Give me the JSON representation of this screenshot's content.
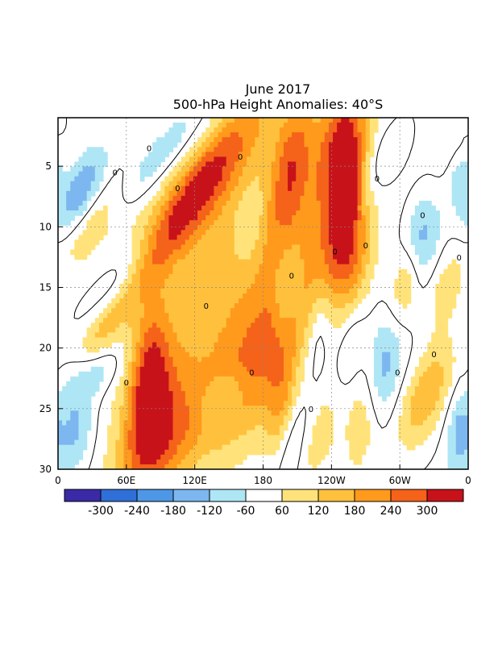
{
  "chart_data": {
    "type": "heatmap",
    "title": "June 2017",
    "subtitle": "500-hPa Height Anomalies: 40°S",
    "xlabel": "",
    "ylabel": "",
    "x_range": [
      0,
      360
    ],
    "y_range": [
      1,
      30
    ],
    "y_inverted": true,
    "x_tick_labels": [
      "0",
      "60E",
      "120E",
      "180",
      "120W",
      "60W",
      "0"
    ],
    "y_tick_labels": [
      "5",
      "10",
      "15",
      "20",
      "25",
      "30"
    ],
    "y_tick_values": [
      5,
      10,
      15,
      20,
      25,
      30
    ],
    "grid": true,
    "contour_label": "0",
    "colorbar": {
      "placement": "bottom",
      "labels": [
        "-300",
        "-240",
        "-180",
        "-120",
        "-60",
        "60",
        "120",
        "180",
        "240",
        "300"
      ],
      "colors": [
        "#3a2aa6",
        "#2f6fd8",
        "#4d97e6",
        "#7cb7f0",
        "#aee6f5",
        "#ffffff",
        "#ffe37a",
        "#ffc13d",
        "#ff9a1c",
        "#f5621a",
        "#c8121a"
      ]
    },
    "features": [
      {
        "kind": "positive",
        "amp": 190,
        "x0": 175,
        "y0": 13.0,
        "xw": 85,
        "yw": 9.0,
        "slope": 0.1
      },
      {
        "kind": "positive",
        "amp": 170,
        "x0": 128,
        "y0": 6.0,
        "xw": 40,
        "yw": 2.2,
        "slope": 0.12
      },
      {
        "kind": "positive",
        "amp": 165,
        "x0": 100,
        "y0": 10.0,
        "xw": 45,
        "yw": 2.5,
        "slope": 0.1
      },
      {
        "kind": "positive",
        "amp": 240,
        "x0": 255,
        "y0": 7.5,
        "xw": 10,
        "yw": 4.0,
        "slope": 0.15
      },
      {
        "kind": "positive",
        "amp": 175,
        "x0": 245,
        "y0": 3.0,
        "xw": 14,
        "yw": 3.5,
        "slope": 0.15
      },
      {
        "kind": "positive",
        "amp": 165,
        "x0": 205,
        "y0": 5.0,
        "xw": 12,
        "yw": 3.5,
        "slope": 0.15
      },
      {
        "kind": "positive",
        "amp": 150,
        "x0": 195,
        "y0": 25.5,
        "xw": 10,
        "yw": 3.5,
        "slope": 0.15
      },
      {
        "kind": "positive",
        "amp": 130,
        "x0": 268,
        "y0": 25.5,
        "xw": 12,
        "yw": 3.5,
        "slope": 0.12
      },
      {
        "kind": "positive",
        "amp": 230,
        "x0": 80,
        "y0": 22.0,
        "xw": 12,
        "yw": 4.0,
        "slope": 0.1
      },
      {
        "kind": "positive",
        "amp": 175,
        "x0": 82,
        "y0": 26.0,
        "xw": 20,
        "yw": 3.0,
        "slope": 0.1
      },
      {
        "kind": "positive",
        "amp": 160,
        "x0": 178,
        "y0": 21.0,
        "xw": 28,
        "yw": 3.5,
        "slope": 0.12
      },
      {
        "kind": "positive",
        "amp": 140,
        "x0": 100,
        "y0": 28.0,
        "xw": 30,
        "yw": 2.5,
        "slope": 0.1
      },
      {
        "kind": "positive",
        "amp": 185,
        "x0": 323,
        "y0": 24.0,
        "xw": 18,
        "yw": 2.5,
        "slope": 0.1
      },
      {
        "kind": "positive",
        "amp": 140,
        "x0": 305,
        "y0": 14.5,
        "xw": 10,
        "yw": 2.5,
        "slope": 0.12
      },
      {
        "kind": "positive",
        "amp": 135,
        "x0": 262,
        "y0": 14.0,
        "xw": 10,
        "yw": 3.0,
        "slope": 0.12
      },
      {
        "kind": "positive",
        "amp": 120,
        "x0": 240,
        "y0": 13.0,
        "xw": 12,
        "yw": 3.5,
        "slope": 0.12
      },
      {
        "kind": "positive",
        "amp": 120,
        "x0": 226,
        "y0": 27.5,
        "xw": 14,
        "yw": 2.5,
        "slope": 0.1
      },
      {
        "kind": "positive",
        "amp": 110,
        "x0": 35,
        "y0": 19.5,
        "xw": 15,
        "yw": 1.8,
        "slope": 0.1
      },
      {
        "kind": "positive",
        "amp": 110,
        "x0": 30,
        "y0": 10.0,
        "xw": 20,
        "yw": 1.8,
        "slope": 0.1
      },
      {
        "kind": "positive",
        "amp": 110,
        "x0": 350,
        "y0": 3.0,
        "xw": 10,
        "yw": 2.0,
        "slope": 0.05
      },
      {
        "kind": "positive",
        "amp": 100,
        "x0": 340,
        "y0": 15.0,
        "xw": 12,
        "yw": 2.5,
        "slope": 0.1
      },
      {
        "kind": "negative",
        "amp": 170,
        "x0": 285,
        "y0": 21.5,
        "xw": 12,
        "yw": 3.0,
        "slope": 0.1
      },
      {
        "kind": "negative",
        "amp": 170,
        "x0": 318,
        "y0": 11.0,
        "xw": 12,
        "yw": 2.5,
        "slope": 0.05
      },
      {
        "kind": "negative",
        "amp": 150,
        "x0": 30,
        "y0": 22.0,
        "xw": 18,
        "yw": 1.5,
        "slope": 0.05
      },
      {
        "kind": "negative",
        "amp": 170,
        "x0": 20,
        "y0": 7.0,
        "xw": 15,
        "yw": 1.8,
        "slope": 0.1
      },
      {
        "kind": "negative",
        "amp": 150,
        "x0": 15,
        "y0": 27.0,
        "xw": 12,
        "yw": 2.5,
        "slope": 0.05
      },
      {
        "kind": "negative",
        "amp": 140,
        "x0": 55,
        "y0": 14.0,
        "xw": 25,
        "yw": 1.5,
        "slope": 0.1
      },
      {
        "kind": "negative",
        "amp": 120,
        "x0": 290,
        "y0": 4.0,
        "xw": 15,
        "yw": 2.0,
        "slope": 0.1
      },
      {
        "kind": "negative",
        "amp": 130,
        "x0": 352,
        "y0": 5.0,
        "xw": 8,
        "yw": 2.5,
        "slope": 0.05
      },
      {
        "kind": "negative",
        "amp": 120,
        "x0": 352,
        "y0": 27.0,
        "xw": 8,
        "yw": 2.5,
        "slope": 0.05
      },
      {
        "kind": "negative",
        "amp": 120,
        "x0": 205,
        "y0": 28.0,
        "xw": 15,
        "yw": 2.5,
        "slope": 0.1
      },
      {
        "kind": "negative",
        "amp": 110,
        "x0": 145,
        "y0": 24.0,
        "xw": 16,
        "yw": 1.3,
        "slope": 0.05
      },
      {
        "kind": "negative",
        "amp": 110,
        "x0": 230,
        "y0": 18.0,
        "xw": 8,
        "yw": 3.0,
        "slope": 0.15
      },
      {
        "kind": "negative",
        "amp": 110,
        "x0": 200,
        "y0": 15.5,
        "xw": 8,
        "yw": 2.5,
        "slope": 0.1
      },
      {
        "kind": "negative",
        "amp": 110,
        "x0": 90,
        "y0": 4.0,
        "xw": 25,
        "yw": 1.3,
        "slope": 0.1
      },
      {
        "kind": "negative",
        "amp": 100,
        "x0": 168,
        "y0": 10.0,
        "xw": 10,
        "yw": 2.5,
        "slope": 0.1
      },
      {
        "kind": "negative",
        "amp": 100,
        "x0": 258,
        "y0": 19.0,
        "xw": 10,
        "yw": 3.0,
        "slope": 0.12
      }
    ]
  }
}
